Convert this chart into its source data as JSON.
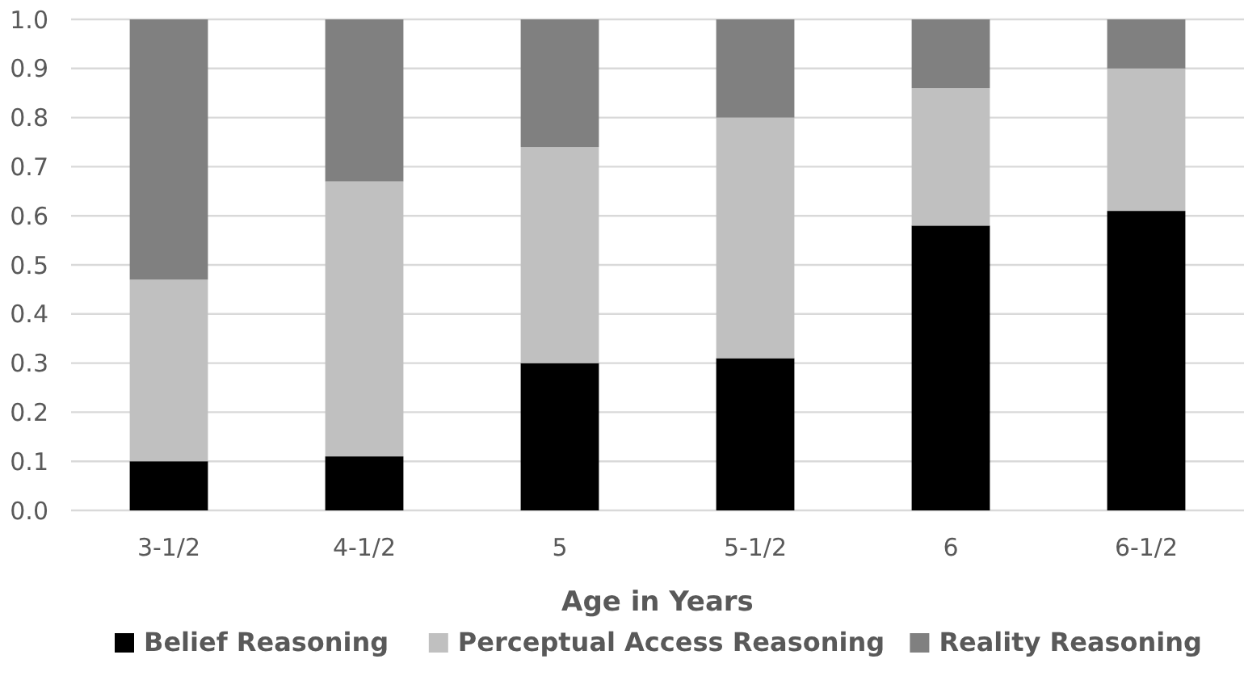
{
  "chart_data": {
    "type": "bar",
    "stacked": true,
    "xlabel": "Age in Years",
    "categories": [
      "3-1/2",
      "4-1/2",
      "5",
      "5-1/2",
      "6",
      "6-1/2"
    ],
    "series": [
      {
        "name": "Belief Reasoning",
        "color": "#000000",
        "values": [
          0.1,
          0.11,
          0.3,
          0.31,
          0.58,
          0.61
        ]
      },
      {
        "name": "Perceptual Access Reasoning",
        "color": "#c0c0c0",
        "values": [
          0.37,
          0.56,
          0.44,
          0.49,
          0.28,
          0.29
        ]
      },
      {
        "name": "Reality Reasoning",
        "color": "#808080",
        "values": [
          0.53,
          0.33,
          0.26,
          0.2,
          0.14,
          0.1
        ]
      }
    ],
    "ylim": [
      0,
      1
    ],
    "yticks": [
      {
        "value": 0,
        "label": "0.0"
      },
      {
        "value": 0.1,
        "label": "0.1"
      },
      {
        "value": 0.2,
        "label": "0.2"
      },
      {
        "value": 0.3,
        "label": "0.3"
      },
      {
        "value": 0.4,
        "label": "0.4"
      },
      {
        "value": 0.5,
        "label": "0.5"
      },
      {
        "value": 0.6,
        "label": "0.6"
      },
      {
        "value": 0.7,
        "label": "0.7"
      },
      {
        "value": 0.8,
        "label": "0.8"
      },
      {
        "value": 0.9,
        "label": "0.9"
      },
      {
        "value": 1,
        "label": "1.0"
      }
    ],
    "grid": "y",
    "legend": "bottom"
  }
}
